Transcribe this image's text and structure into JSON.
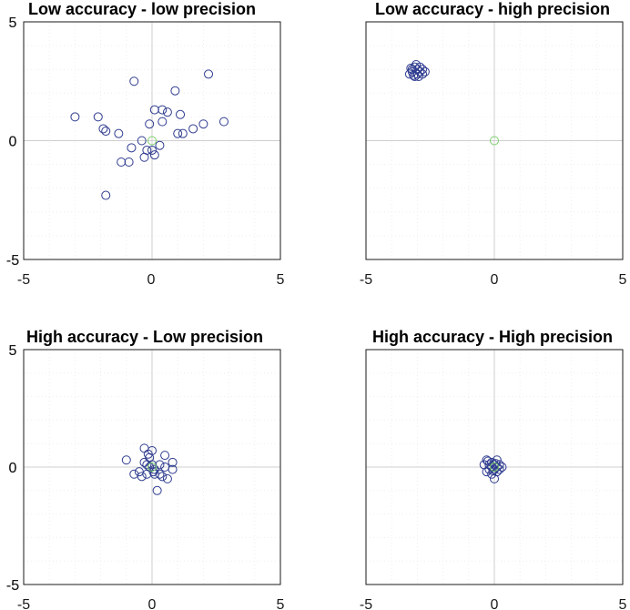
{
  "chart_data": [
    {
      "type": "scatter",
      "title": "Low accuracy - low precision",
      "xlabel": "",
      "ylabel": "",
      "xlim": [
        -5,
        5
      ],
      "ylim": [
        -5,
        5
      ],
      "xticks": [
        "-5",
        "0",
        "5"
      ],
      "yticks": [
        "5",
        "0",
        "-5"
      ],
      "grid": true,
      "series": [
        {
          "color": "#2f3c8f",
          "points": [
            [
              -3.0,
              1.0
            ],
            [
              -2.1,
              1.0
            ],
            [
              -1.9,
              0.5
            ],
            [
              -1.8,
              0.4
            ],
            [
              -1.8,
              -2.3
            ],
            [
              -1.3,
              0.3
            ],
            [
              -1.2,
              -0.9
            ],
            [
              -0.9,
              -0.9
            ],
            [
              -0.8,
              -0.3
            ],
            [
              -0.7,
              2.5
            ],
            [
              -0.4,
              0.0
            ],
            [
              -0.3,
              -0.7
            ],
            [
              -0.2,
              -0.4
            ],
            [
              -0.1,
              0.7
            ],
            [
              0.0,
              -0.4
            ],
            [
              0.1,
              1.3
            ],
            [
              0.1,
              -0.6
            ],
            [
              0.3,
              -0.2
            ],
            [
              0.4,
              1.3
            ],
            [
              0.4,
              0.8
            ],
            [
              0.6,
              1.2
            ],
            [
              0.9,
              2.1
            ],
            [
              1.0,
              0.3
            ],
            [
              1.1,
              1.1
            ],
            [
              1.2,
              0.3
            ],
            [
              1.6,
              0.5
            ],
            [
              2.0,
              0.7
            ],
            [
              2.2,
              2.8
            ],
            [
              2.8,
              0.8
            ]
          ]
        },
        {
          "color": "#7ccf6c",
          "points": [
            [
              0.0,
              0.0
            ]
          ]
        }
      ]
    },
    {
      "type": "scatter",
      "title": "Low accuracy - high precision",
      "xlabel": "",
      "ylabel": "",
      "xlim": [
        -5,
        5
      ],
      "ylim": [
        -5,
        5
      ],
      "xticks": [
        "-5",
        "0",
        "5"
      ],
      "yticks": [
        "5",
        "0",
        "-5"
      ],
      "grid": true,
      "series": [
        {
          "color": "#2f3c8f",
          "points": [
            [
              -3.3,
              2.8
            ],
            [
              -3.2,
              3.0
            ],
            [
              -3.2,
              2.9
            ],
            [
              -3.1,
              3.1
            ],
            [
              -3.1,
              2.7
            ],
            [
              -3.0,
              3.0
            ],
            [
              -3.0,
              2.8
            ],
            [
              -2.9,
              3.1
            ],
            [
              -2.9,
              2.9
            ],
            [
              -2.8,
              3.0
            ],
            [
              -2.8,
              2.8
            ],
            [
              -2.7,
              2.9
            ],
            [
              -3.05,
              3.2
            ],
            [
              -3.15,
              2.75
            ],
            [
              -2.95,
              2.7
            ],
            [
              -3.25,
              3.05
            ]
          ]
        },
        {
          "color": "#7ccf6c",
          "points": [
            [
              0.0,
              0.0
            ]
          ]
        }
      ]
    },
    {
      "type": "scatter",
      "title": "High accuracy - Low precision",
      "xlabel": "",
      "ylabel": "",
      "xlim": [
        -5,
        5
      ],
      "ylim": [
        -5,
        5
      ],
      "xticks": [
        "-5",
        "0",
        "5"
      ],
      "yticks": [
        "5",
        "0",
        "-5"
      ],
      "grid": true,
      "series": [
        {
          "color": "#2f3c8f",
          "points": [
            [
              -1.0,
              0.3
            ],
            [
              -0.7,
              -0.3
            ],
            [
              -0.5,
              -0.2
            ],
            [
              -0.4,
              -0.4
            ],
            [
              -0.3,
              0.8
            ],
            [
              -0.3,
              0.2
            ],
            [
              -0.2,
              0.1
            ],
            [
              -0.2,
              -0.3
            ],
            [
              -0.1,
              0.4
            ],
            [
              -0.1,
              0.0
            ],
            [
              0.0,
              0.7
            ],
            [
              0.0,
              0.1
            ],
            [
              0.1,
              -0.3
            ],
            [
              0.1,
              -0.1
            ],
            [
              0.2,
              -1.0
            ],
            [
              0.3,
              0.1
            ],
            [
              0.3,
              -0.3
            ],
            [
              0.4,
              -0.4
            ],
            [
              0.5,
              0.5
            ],
            [
              0.5,
              0.0
            ],
            [
              0.6,
              -0.5
            ],
            [
              0.8,
              0.2
            ],
            [
              0.8,
              -0.1
            ],
            [
              -0.15,
              0.55
            ],
            [
              0.05,
              -0.2
            ]
          ]
        },
        {
          "color": "#7ccf6c",
          "points": [
            [
              0.0,
              0.0
            ]
          ]
        }
      ]
    },
    {
      "type": "scatter",
      "title": "High accuracy - High precision",
      "xlabel": "",
      "ylabel": "",
      "xlim": [
        -5,
        5
      ],
      "ylim": [
        -5,
        5
      ],
      "xticks": [
        "-5",
        "0",
        "5"
      ],
      "yticks": [
        "5",
        "0",
        "-5"
      ],
      "grid": true,
      "series": [
        {
          "color": "#2f3c8f",
          "points": [
            [
              -0.4,
              0.1
            ],
            [
              -0.3,
              0.3
            ],
            [
              -0.3,
              -0.2
            ],
            [
              -0.2,
              0.1
            ],
            [
              -0.2,
              -0.1
            ],
            [
              -0.1,
              0.2
            ],
            [
              -0.1,
              0.0
            ],
            [
              -0.1,
              -0.3
            ],
            [
              0.0,
              0.1
            ],
            [
              0.0,
              -0.1
            ],
            [
              0.0,
              -0.5
            ],
            [
              0.1,
              0.3
            ],
            [
              0.1,
              0.0
            ],
            [
              0.1,
              -0.2
            ],
            [
              0.2,
              0.1
            ],
            [
              0.2,
              -0.1
            ],
            [
              0.3,
              0.0
            ],
            [
              -0.25,
              0.25
            ],
            [
              0.05,
              0.15
            ],
            [
              -0.05,
              -0.15
            ]
          ]
        },
        {
          "color": "#7ccf6c",
          "points": [
            [
              0.0,
              0.0
            ]
          ]
        }
      ]
    }
  ]
}
